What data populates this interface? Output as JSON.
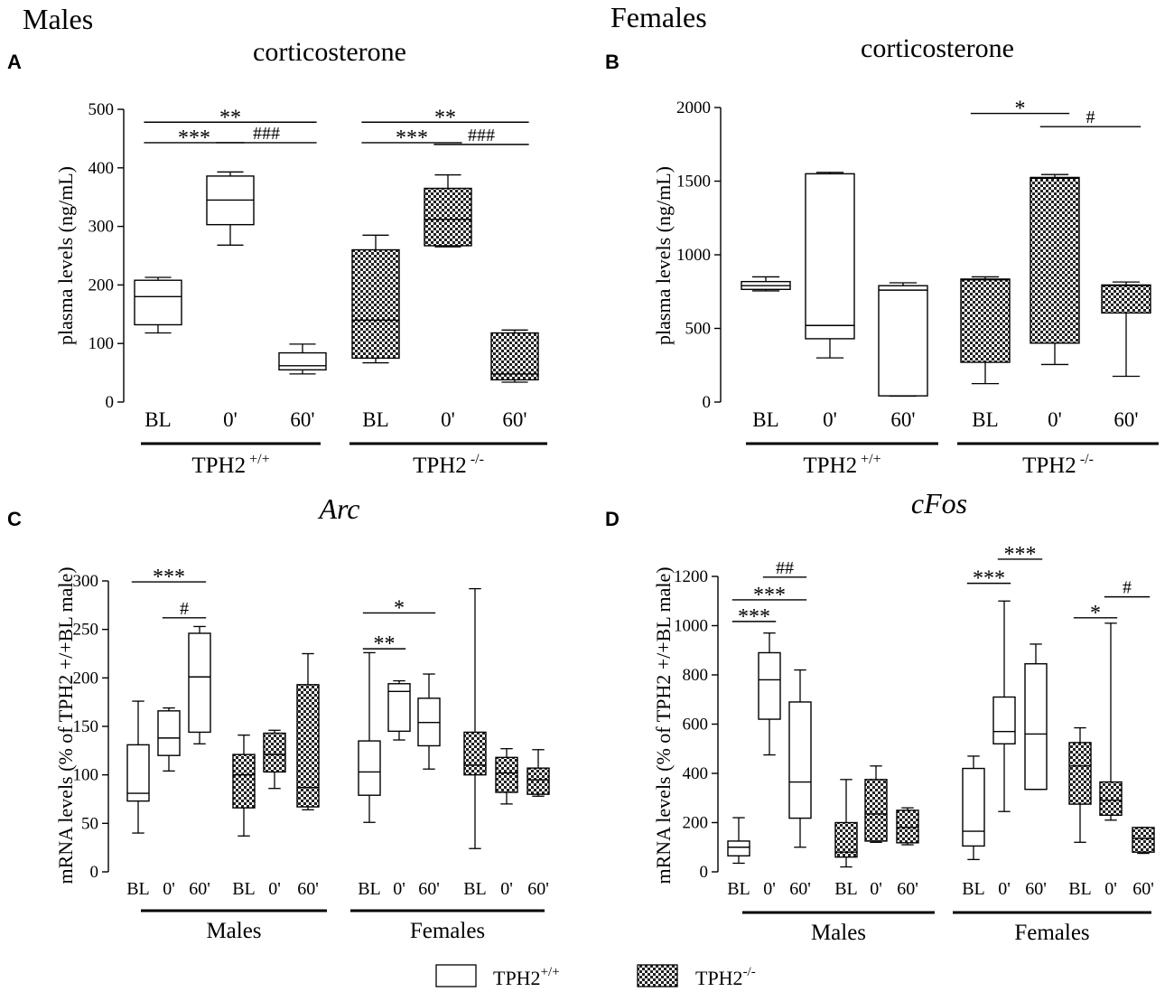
{
  "headers": {
    "left": "Males",
    "right": "Females"
  },
  "legend": {
    "wt": "TPH2",
    "wt_sup": "+/+",
    "ko": "TPH2",
    "ko_sup": "-/-"
  },
  "chart_data": [
    {
      "id": "A",
      "type": "box",
      "letter": "A",
      "title": "corticosterone",
      "title_italic": false,
      "ylabel": "plasma levels (ng/mL)",
      "ylim": [
        0,
        500
      ],
      "yticks": [
        "0",
        "100",
        "200",
        "300",
        "400",
        "500"
      ],
      "categories": [
        "BL",
        "0'",
        "60'",
        "BL",
        "0'",
        "60'"
      ],
      "groups": [
        {
          "label": "TPH2",
          "sup": "+/+"
        },
        {
          "label": "TPH2",
          "sup": "-/-"
        }
      ],
      "boxes": [
        {
          "genotype": "TPH2+/+",
          "min": 118,
          "q1": 132,
          "median": 180,
          "q3": 208,
          "max": 213
        },
        {
          "genotype": "TPH2+/+",
          "min": 268,
          "q1": 303,
          "median": 345,
          "q3": 386,
          "max": 393
        },
        {
          "genotype": "TPH2+/+",
          "min": 48,
          "q1": 55,
          "median": 62,
          "q3": 84,
          "max": 99
        },
        {
          "genotype": "TPH2-/-",
          "min": 67,
          "q1": 75,
          "median": 140,
          "q3": 260,
          "max": 285
        },
        {
          "genotype": "TPH2-/-",
          "min": 265,
          "q1": 267,
          "median": 312,
          "q3": 365,
          "max": 388
        },
        {
          "genotype": "TPH2-/-",
          "min": 34,
          "q1": 38,
          "median": 48,
          "q3": 118,
          "max": 123
        }
      ],
      "annotations": [
        {
          "text": "**",
          "from": 0,
          "to": 2,
          "y": 478
        },
        {
          "text": "***",
          "from": 0,
          "to": 1,
          "y": 443
        },
        {
          "text": "###",
          "from": 1,
          "to": 2,
          "y": 443
        },
        {
          "text": "**",
          "from": 3,
          "to": 5,
          "y": 478
        },
        {
          "text": "***",
          "from": 3,
          "to": 4,
          "y": 443
        },
        {
          "text": "###",
          "from": 4,
          "to": 5,
          "y": 440
        }
      ]
    },
    {
      "id": "B",
      "type": "box",
      "letter": "B",
      "title": "corticosterone",
      "title_italic": false,
      "ylabel": "plasma levels (ng/mL)",
      "ylim": [
        0,
        2000
      ],
      "yticks": [
        "0",
        "500",
        "1000",
        "1500",
        "2000"
      ],
      "categories": [
        "BL",
        "0'",
        "60'",
        "BL",
        "0'",
        "60'"
      ],
      "groups": [
        {
          "label": "TPH2",
          "sup": "+/+"
        },
        {
          "label": "TPH2",
          "sup": "-/-"
        }
      ],
      "boxes": [
        {
          "genotype": "TPH2+/+",
          "min": 755,
          "q1": 765,
          "median": 790,
          "q3": 818,
          "max": 850
        },
        {
          "genotype": "TPH2+/+",
          "min": 300,
          "q1": 430,
          "median": 520,
          "q3": 1550,
          "max": 1560
        },
        {
          "genotype": "TPH2+/+",
          "min": 40,
          "q1": 42,
          "median": 760,
          "q3": 790,
          "max": 810
        },
        {
          "genotype": "TPH2-/-",
          "min": 125,
          "q1": 270,
          "median": 830,
          "q3": 835,
          "max": 850
        },
        {
          "genotype": "TPH2-/-",
          "min": 255,
          "q1": 400,
          "median": 1520,
          "q3": 1525,
          "max": 1545
        },
        {
          "genotype": "TPH2-/-",
          "min": 175,
          "q1": 605,
          "median": 790,
          "q3": 795,
          "max": 815
        }
      ],
      "annotations": [
        {
          "text": "*",
          "from": 3,
          "to": 4,
          "y": 1960
        },
        {
          "text": "#",
          "from": 4,
          "to": 5,
          "y": 1870
        }
      ]
    },
    {
      "id": "C",
      "type": "box",
      "letter": "C",
      "title": "Arc",
      "title_italic": true,
      "ylabel": "mRNA levels (% of TPH2 +/+BL male)",
      "ylim": [
        0,
        300
      ],
      "yticks": [
        "0",
        "50",
        "100",
        "150",
        "200",
        "250",
        "300"
      ],
      "categories": [
        "BL",
        "0'",
        "60'",
        "BL",
        "0'",
        "60'",
        "BL",
        "0'",
        "60'",
        "BL",
        "0'",
        "60'"
      ],
      "groups": [
        {
          "label": "Males",
          "sup": ""
        },
        {
          "label": "Females",
          "sup": ""
        }
      ],
      "boxes": [
        {
          "genotype": "TPH2+/+",
          "min": 40,
          "q1": 73,
          "median": 81,
          "q3": 131,
          "max": 176
        },
        {
          "genotype": "TPH2+/+",
          "min": 104,
          "q1": 120,
          "median": 138,
          "q3": 166,
          "max": 169
        },
        {
          "genotype": "TPH2+/+",
          "min": 132,
          "q1": 144,
          "median": 201,
          "q3": 246,
          "max": 253
        },
        {
          "genotype": "TPH2-/-",
          "min": 37,
          "q1": 66,
          "median": 100,
          "q3": 121,
          "max": 141
        },
        {
          "genotype": "TPH2-/-",
          "min": 86,
          "q1": 103,
          "median": 121,
          "q3": 143,
          "max": 146
        },
        {
          "genotype": "TPH2-/-",
          "min": 64,
          "q1": 67,
          "median": 87,
          "q3": 193,
          "max": 225
        },
        {
          "genotype": "TPH2+/+",
          "min": 51,
          "q1": 79,
          "median": 103,
          "q3": 135,
          "max": 226
        },
        {
          "genotype": "TPH2+/+",
          "min": 136,
          "q1": 145,
          "median": 186,
          "q3": 194,
          "max": 197
        },
        {
          "genotype": "TPH2+/+",
          "min": 106,
          "q1": 130,
          "median": 154,
          "q3": 179,
          "max": 204
        },
        {
          "genotype": "TPH2-/-",
          "min": 24,
          "q1": 100,
          "median": 110,
          "q3": 144,
          "max": 292
        },
        {
          "genotype": "TPH2-/-",
          "min": 70,
          "q1": 82,
          "median": 102,
          "q3": 118,
          "max": 127
        },
        {
          "genotype": "TPH2-/-",
          "min": 78,
          "q1": 80,
          "median": 95,
          "q3": 107,
          "max": 126
        }
      ],
      "annotations": [
        {
          "text": "***",
          "from": 0,
          "to": 2,
          "y": 299
        },
        {
          "text": "#",
          "from": 1,
          "to": 2,
          "y": 262
        },
        {
          "text": "*",
          "from": 6,
          "to": 8,
          "y": 267
        },
        {
          "text": "**",
          "from": 6,
          "to": 7,
          "y": 230
        }
      ]
    },
    {
      "id": "D",
      "type": "box",
      "letter": "D",
      "title": "cFos",
      "title_italic": true,
      "ylabel": "mRNA levels (% of TPH2 +/+BL male)",
      "ylim": [
        0,
        1200
      ],
      "yticks": [
        "0",
        "200",
        "400",
        "600",
        "800",
        "1000",
        "1200"
      ],
      "categories": [
        "BL",
        "0'",
        "60'",
        "BL",
        "0'",
        "60'",
        "BL",
        "0'",
        "60'",
        "BL",
        "0'",
        "60'"
      ],
      "groups": [
        {
          "label": "Males",
          "sup": ""
        },
        {
          "label": "Females",
          "sup": ""
        }
      ],
      "boxes": [
        {
          "genotype": "TPH2+/+",
          "min": 35,
          "q1": 65,
          "median": 100,
          "q3": 125,
          "max": 220
        },
        {
          "genotype": "TPH2+/+",
          "min": 475,
          "q1": 620,
          "median": 780,
          "q3": 890,
          "max": 970
        },
        {
          "genotype": "TPH2+/+",
          "min": 100,
          "q1": 218,
          "median": 365,
          "q3": 690,
          "max": 820
        },
        {
          "genotype": "TPH2-/-",
          "min": 20,
          "q1": 60,
          "median": 80,
          "q3": 200,
          "max": 375
        },
        {
          "genotype": "TPH2-/-",
          "min": 120,
          "q1": 125,
          "median": 235,
          "q3": 375,
          "max": 430
        },
        {
          "genotype": "TPH2-/-",
          "min": 110,
          "q1": 118,
          "median": 180,
          "q3": 250,
          "max": 260
        },
        {
          "genotype": "TPH2+/+",
          "min": 50,
          "q1": 105,
          "median": 165,
          "q3": 420,
          "max": 470
        },
        {
          "genotype": "TPH2+/+",
          "min": 245,
          "q1": 520,
          "median": 570,
          "q3": 710,
          "max": 1100
        },
        {
          "genotype": "TPH2+/+",
          "min": 335,
          "q1": 335,
          "median": 560,
          "q3": 845,
          "max": 925
        },
        {
          "genotype": "TPH2-/-",
          "min": 120,
          "q1": 275,
          "median": 430,
          "q3": 525,
          "max": 585
        },
        {
          "genotype": "TPH2-/-",
          "min": 210,
          "q1": 230,
          "median": 290,
          "q3": 365,
          "max": 1010
        },
        {
          "genotype": "TPH2-/-",
          "min": 75,
          "q1": 80,
          "median": 135,
          "q3": 180,
          "max": 180
        }
      ],
      "annotations": [
        {
          "text": "##",
          "from": 1,
          "to": 2,
          "y": 1197
        },
        {
          "text": "***",
          "from": 0,
          "to": 2,
          "y": 1105
        },
        {
          "text": "***",
          "from": 0,
          "to": 1,
          "y": 1017
        },
        {
          "text": "***",
          "from": 7,
          "to": 8,
          "y": 1270
        },
        {
          "text": "***",
          "from": 6,
          "to": 7,
          "y": 1172
        },
        {
          "text": "*",
          "from": 9,
          "to": 10,
          "y": 1032
        },
        {
          "text": "#",
          "from": 10,
          "to": 11,
          "y": 1117
        }
      ]
    }
  ]
}
